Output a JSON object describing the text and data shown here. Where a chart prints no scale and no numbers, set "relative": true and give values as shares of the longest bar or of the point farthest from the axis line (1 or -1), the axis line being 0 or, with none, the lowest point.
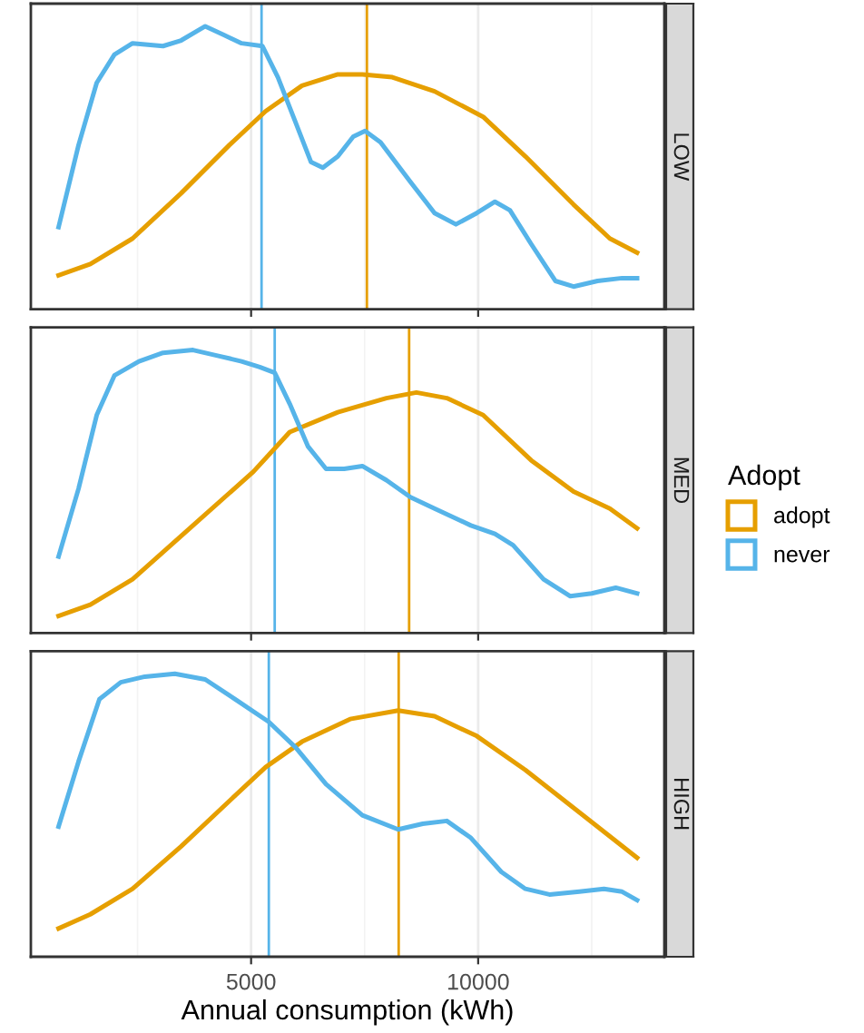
{
  "chart_data": [
    {
      "type": "line",
      "title": "LOW",
      "relative": true,
      "xlim": [
        150,
        14100
      ],
      "xticks": [
        5000,
        10000
      ],
      "grid": "x",
      "tick_labels": false,
      "line_style": "solid",
      "legend": "right",
      "legend_title": "Adopt",
      "series": [
        {
          "name": "adopt",
          "color": "#e69f00",
          "x": [
            760,
            1460,
            2390,
            3460,
            4520,
            5320,
            6120,
            6910,
            7450,
            8110,
            9040,
            10110,
            11040,
            12100,
            12900,
            13500
          ],
          "values": [
            0.12,
            0.16,
            0.25,
            0.41,
            0.58,
            0.7,
            0.79,
            0.83,
            0.83,
            0.82,
            0.77,
            0.68,
            0.54,
            0.37,
            0.25,
            0.2
          ]
        },
        {
          "name": "never",
          "color": "#56b4e9",
          "x": [
            760,
            1200,
            1600,
            1990,
            2390,
            3060,
            3460,
            3990,
            4390,
            4790,
            5250,
            5590,
            5980,
            6320,
            6580,
            6910,
            7250,
            7510,
            7850,
            8510,
            9040,
            9510,
            9970,
            10370,
            10700,
            11170,
            11700,
            12100,
            12630,
            13170,
            13500
          ],
          "values": [
            0.29,
            0.58,
            0.8,
            0.9,
            0.94,
            0.93,
            0.95,
            1,
            0.97,
            0.94,
            0.93,
            0.82,
            0.66,
            0.52,
            0.5,
            0.54,
            0.61,
            0.63,
            0.59,
            0.45,
            0.34,
            0.3,
            0.34,
            0.38,
            0.35,
            0.23,
            0.1,
            0.08,
            0.1,
            0.11,
            0.11
          ]
        }
      ],
      "ref_lines": [
        {
          "axis": "x",
          "value": 7550,
          "color": "#e69f00"
        },
        {
          "axis": "x",
          "value": 5230,
          "color": "#56b4e9"
        }
      ]
    },
    {
      "type": "line",
      "title": "MED",
      "relative": true,
      "xlim": [
        150,
        14100
      ],
      "xticks": [
        5000,
        10000
      ],
      "grid": "x",
      "tick_labels": false,
      "line_style": "solid",
      "series": [
        {
          "color": "#e69f00",
          "x": [
            760,
            1460,
            2390,
            3720,
            5050,
            5850,
            6910,
            7980,
            8640,
            9310,
            10110,
            11170,
            12100,
            12900,
            13500
          ],
          "values": [
            0.06,
            0.1,
            0.19,
            0.38,
            0.57,
            0.71,
            0.78,
            0.83,
            0.85,
            0.83,
            0.77,
            0.61,
            0.5,
            0.44,
            0.37
          ]
        },
        {
          "color": "#56b4e9",
          "x": [
            760,
            1200,
            1600,
            1990,
            2530,
            3060,
            3720,
            4260,
            4790,
            5190,
            5520,
            5850,
            6250,
            6650,
            7050,
            7450,
            7980,
            8510,
            9040,
            9840,
            10370,
            10770,
            11440,
            12030,
            12500,
            13030,
            13500
          ],
          "values": [
            0.27,
            0.51,
            0.77,
            0.91,
            0.96,
            0.99,
            1,
            0.98,
            0.96,
            0.94,
            0.92,
            0.81,
            0.66,
            0.58,
            0.58,
            0.59,
            0.54,
            0.48,
            0.44,
            0.38,
            0.35,
            0.31,
            0.19,
            0.13,
            0.14,
            0.16,
            0.14
          ]
        }
      ],
      "ref_lines": [
        {
          "axis": "x",
          "value": 8480,
          "color": "#e69f00"
        },
        {
          "axis": "x",
          "value": 5520,
          "color": "#56b4e9"
        }
      ]
    },
    {
      "type": "line",
      "title": "HIGH",
      "relative": true,
      "xlim": [
        150,
        14100
      ],
      "xticks": [
        5000,
        10000
      ],
      "grid": "x",
      "tick_labels": "x",
      "line_style": "solid",
      "xlabel": "Annual consumption (kWh)",
      "series": [
        {
          "color": "#e69f00",
          "x": [
            760,
            1460,
            2390,
            3460,
            4520,
            5320,
            6120,
            7180,
            8240,
            9040,
            9970,
            11040,
            12230,
            13500
          ],
          "values": [
            0.1,
            0.15,
            0.24,
            0.39,
            0.55,
            0.67,
            0.76,
            0.84,
            0.87,
            0.85,
            0.78,
            0.66,
            0.51,
            0.35
          ]
        },
        {
          "color": "#56b4e9",
          "x": [
            760,
            1200,
            1660,
            2130,
            2660,
            3320,
            3990,
            4650,
            5390,
            5980,
            6650,
            7450,
            8240,
            8780,
            9310,
            9840,
            10510,
            11040,
            11570,
            12230,
            12770,
            13170,
            13500
          ],
          "values": [
            0.46,
            0.69,
            0.91,
            0.97,
            0.99,
            1,
            0.98,
            0.91,
            0.83,
            0.74,
            0.61,
            0.5,
            0.45,
            0.47,
            0.48,
            0.42,
            0.3,
            0.24,
            0.22,
            0.23,
            0.24,
            0.23,
            0.2
          ]
        }
      ],
      "ref_lines": [
        {
          "axis": "x",
          "value": 8250,
          "color": "#e69f00"
        },
        {
          "axis": "x",
          "value": 5390,
          "color": "#56b4e9"
        }
      ]
    }
  ]
}
